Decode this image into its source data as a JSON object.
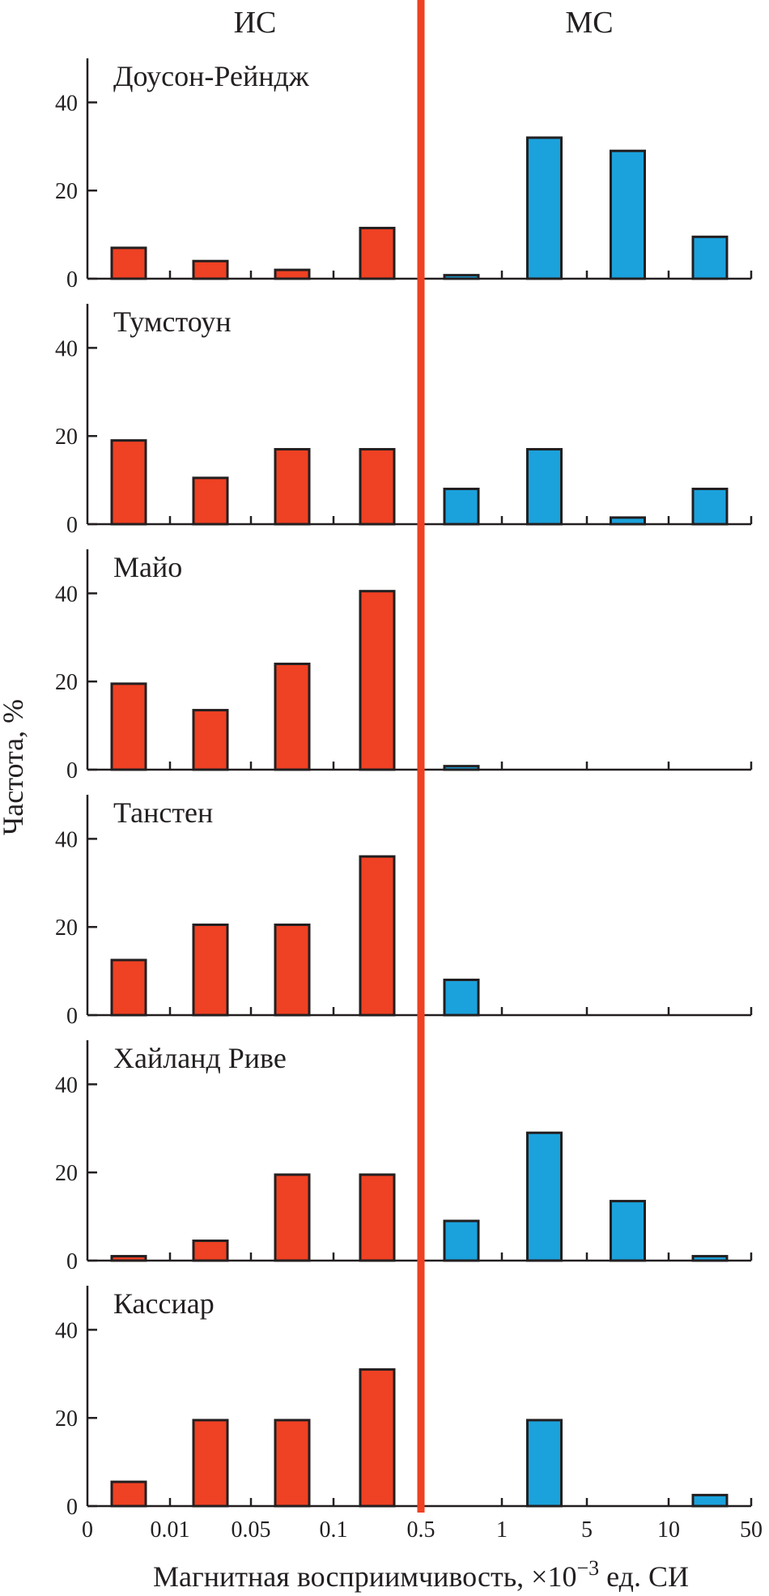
{
  "chart_data": {
    "type": "bar",
    "group_labels": {
      "left": "ИС",
      "right": "МС"
    },
    "colors": {
      "ic": "#ef4123",
      "mc": "#1ba2dc",
      "divider": "#ef4123",
      "axis": "#231f20"
    },
    "xlabel": "Магнитная восприимчивость, ×10",
    "xlabel_exponent": "−3",
    "xlabel_suffix": " ед. СИ",
    "ylabel": "Частота, %",
    "x_tick_labels": [
      "0",
      "0.01",
      "0.05",
      "0.1",
      "0.5",
      "1",
      "5",
      "10",
      "50"
    ],
    "y_ticks": [
      0,
      20,
      40
    ],
    "ylim": [
      0,
      50
    ],
    "divider_at": "0.5",
    "bins": [
      "0–0.01",
      "0.01–0.05",
      "0.05–0.1",
      "0.1–0.5",
      "0.5–1",
      "1–5",
      "5–10",
      "10–50"
    ],
    "panels": [
      {
        "name": "Доусон-Рейндж",
        "values": [
          7,
          4,
          2,
          11.5,
          0.8,
          32,
          29,
          9.5
        ]
      },
      {
        "name": "Тумстоун",
        "values": [
          19,
          10.5,
          17,
          17,
          8,
          17,
          1.5,
          8
        ]
      },
      {
        "name": "Майо",
        "values": [
          19.5,
          13.5,
          24,
          40.5,
          0.8,
          0,
          0,
          0
        ]
      },
      {
        "name": "Танстен",
        "values": [
          12.5,
          20.5,
          20.5,
          36,
          8,
          0,
          0,
          0
        ]
      },
      {
        "name": "Хайланд Риве",
        "values": [
          1,
          4.5,
          19.5,
          19.5,
          9,
          29,
          13.5,
          1
        ]
      },
      {
        "name": "Кассиар",
        "values": [
          5.5,
          19.5,
          19.5,
          31,
          0,
          19.5,
          0,
          2.5
        ]
      }
    ]
  }
}
